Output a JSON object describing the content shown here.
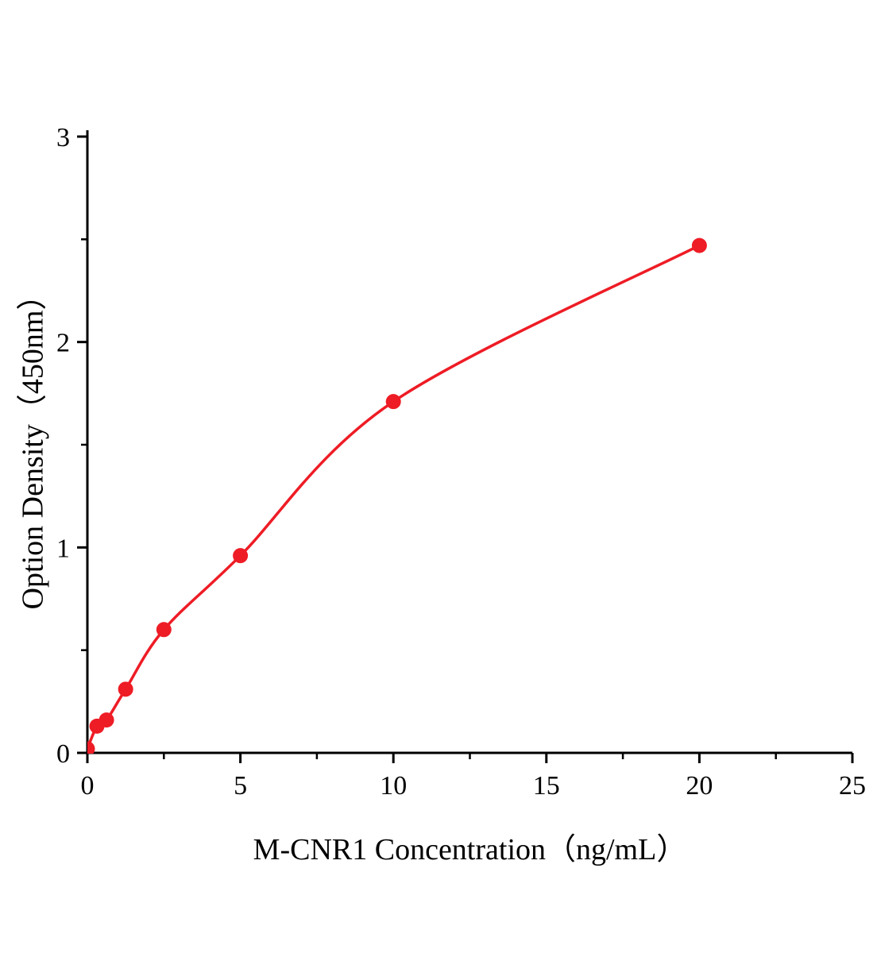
{
  "chart_data": {
    "type": "scatter",
    "title": "",
    "xlabel": "M-CNR1 Concentration（ng/mL）",
    "ylabel": "Option Density（450nm）",
    "x": [
      0,
      0.313,
      0.625,
      1.25,
      2.5,
      5,
      10,
      20
    ],
    "y": [
      0.02,
      0.13,
      0.16,
      0.31,
      0.6,
      0.96,
      1.71,
      2.47
    ],
    "fitted_curve": true,
    "xlim": [
      0,
      25
    ],
    "ylim": [
      0,
      3
    ],
    "x_ticks": [
      0,
      5,
      10,
      15,
      20,
      25
    ],
    "y_ticks": [
      0,
      1,
      2,
      3
    ],
    "x_minor_step": 2.5,
    "y_minor_step": 0.5,
    "grid": false,
    "legend": null,
    "marker_color": "#ee1c25",
    "line_color": "#ee1c25",
    "axis_color": "#000000",
    "tick_label_color": "#000000"
  }
}
